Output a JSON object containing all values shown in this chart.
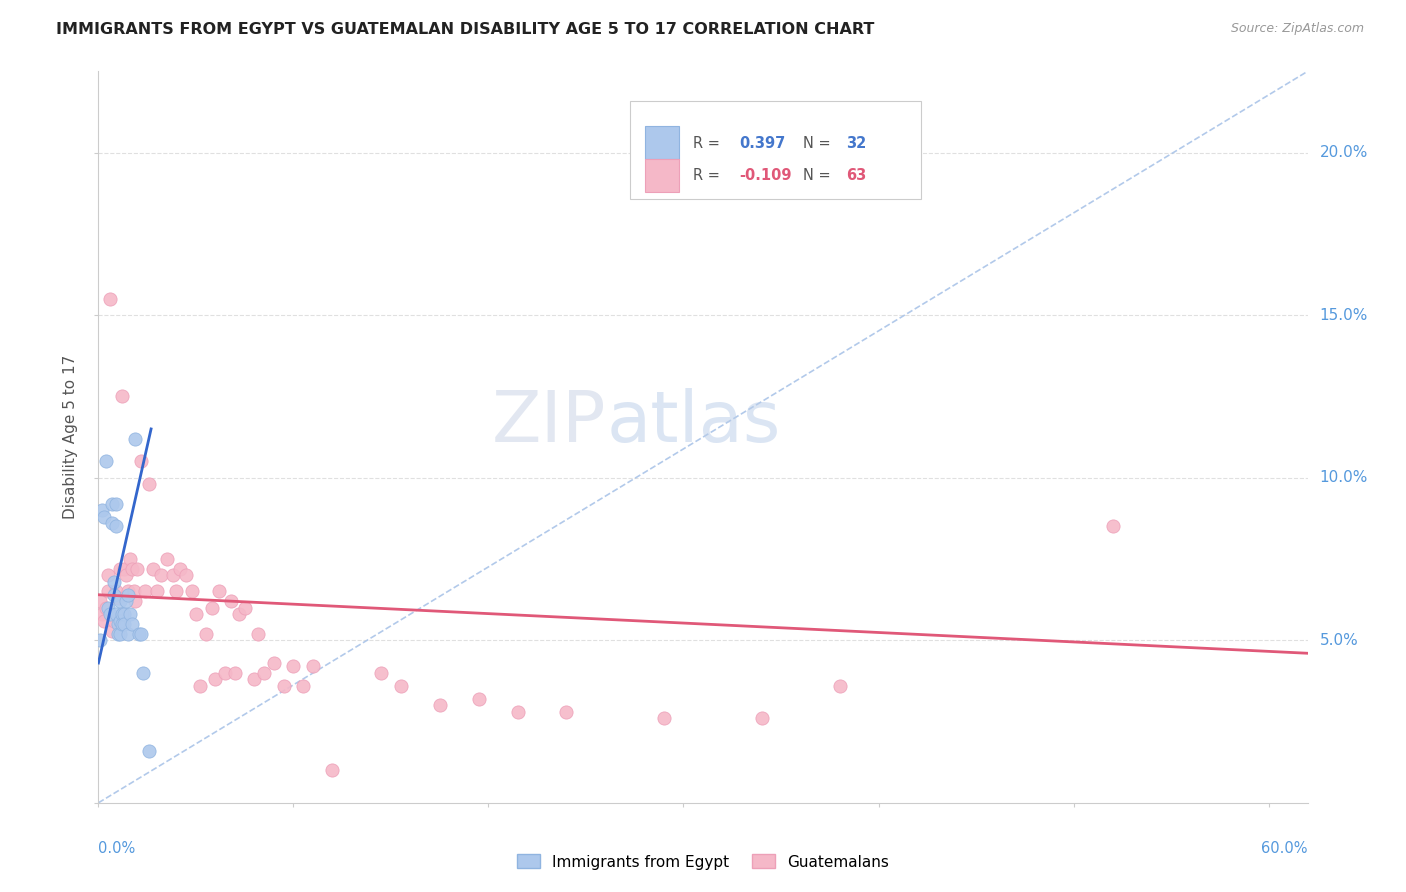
{
  "title": "IMMIGRANTS FROM EGYPT VS GUATEMALAN DISABILITY AGE 5 TO 17 CORRELATION CHART",
  "source": "Source: ZipAtlas.com",
  "ylabel": "Disability Age 5 to 17",
  "right_yticks": [
    "20.0%",
    "15.0%",
    "10.0%",
    "5.0%"
  ],
  "right_ytick_vals": [
    0.2,
    0.15,
    0.1,
    0.05
  ],
  "legend": {
    "egypt_r": "0.397",
    "egypt_n": "32",
    "guatemala_r": "-0.109",
    "guatemala_n": "63"
  },
  "egypt_color": "#adc8ec",
  "egypt_color_edge": "#90b4e0",
  "guatemala_color": "#f5b8c8",
  "guatemala_color_edge": "#eda0b8",
  "trend_egypt_color": "#3366cc",
  "trend_guatemala_color": "#e05878",
  "diagonal_color": "#aac4e8",
  "watermark_zip": "ZIP",
  "watermark_atlas": "atlas",
  "egypt_points": [
    [
      0.001,
      0.05
    ],
    [
      0.002,
      0.09
    ],
    [
      0.003,
      0.088
    ],
    [
      0.004,
      0.105
    ],
    [
      0.005,
      0.06
    ],
    [
      0.006,
      0.058
    ],
    [
      0.007,
      0.092
    ],
    [
      0.007,
      0.086
    ],
    [
      0.008,
      0.068
    ],
    [
      0.008,
      0.064
    ],
    [
      0.009,
      0.092
    ],
    [
      0.009,
      0.085
    ],
    [
      0.009,
      0.058
    ],
    [
      0.01,
      0.055
    ],
    [
      0.01,
      0.052
    ],
    [
      0.011,
      0.062
    ],
    [
      0.011,
      0.056
    ],
    [
      0.011,
      0.052
    ],
    [
      0.012,
      0.058
    ],
    [
      0.012,
      0.055
    ],
    [
      0.013,
      0.058
    ],
    [
      0.013,
      0.055
    ],
    [
      0.014,
      0.062
    ],
    [
      0.015,
      0.064
    ],
    [
      0.015,
      0.052
    ],
    [
      0.016,
      0.058
    ],
    [
      0.017,
      0.055
    ],
    [
      0.019,
      0.112
    ],
    [
      0.021,
      0.052
    ],
    [
      0.022,
      0.052
    ],
    [
      0.023,
      0.04
    ],
    [
      0.026,
      0.016
    ]
  ],
  "guatemala_points": [
    [
      0.001,
      0.062
    ],
    [
      0.002,
      0.058
    ],
    [
      0.003,
      0.056
    ],
    [
      0.004,
      0.06
    ],
    [
      0.005,
      0.07
    ],
    [
      0.005,
      0.065
    ],
    [
      0.006,
      0.155
    ],
    [
      0.007,
      0.053
    ],
    [
      0.008,
      0.056
    ],
    [
      0.009,
      0.065
    ],
    [
      0.01,
      0.063
    ],
    [
      0.011,
      0.072
    ],
    [
      0.012,
      0.125
    ],
    [
      0.013,
      0.072
    ],
    [
      0.014,
      0.07
    ],
    [
      0.015,
      0.065
    ],
    [
      0.016,
      0.075
    ],
    [
      0.017,
      0.072
    ],
    [
      0.018,
      0.065
    ],
    [
      0.019,
      0.062
    ],
    [
      0.02,
      0.072
    ],
    [
      0.022,
      0.105
    ],
    [
      0.024,
      0.065
    ],
    [
      0.026,
      0.098
    ],
    [
      0.028,
      0.072
    ],
    [
      0.03,
      0.065
    ],
    [
      0.032,
      0.07
    ],
    [
      0.035,
      0.075
    ],
    [
      0.038,
      0.07
    ],
    [
      0.04,
      0.065
    ],
    [
      0.042,
      0.072
    ],
    [
      0.045,
      0.07
    ],
    [
      0.048,
      0.065
    ],
    [
      0.05,
      0.058
    ],
    [
      0.052,
      0.036
    ],
    [
      0.055,
      0.052
    ],
    [
      0.058,
      0.06
    ],
    [
      0.06,
      0.038
    ],
    [
      0.062,
      0.065
    ],
    [
      0.065,
      0.04
    ],
    [
      0.068,
      0.062
    ],
    [
      0.07,
      0.04
    ],
    [
      0.072,
      0.058
    ],
    [
      0.075,
      0.06
    ],
    [
      0.08,
      0.038
    ],
    [
      0.082,
      0.052
    ],
    [
      0.085,
      0.04
    ],
    [
      0.09,
      0.043
    ],
    [
      0.095,
      0.036
    ],
    [
      0.1,
      0.042
    ],
    [
      0.105,
      0.036
    ],
    [
      0.11,
      0.042
    ],
    [
      0.12,
      0.01
    ],
    [
      0.145,
      0.04
    ],
    [
      0.155,
      0.036
    ],
    [
      0.175,
      0.03
    ],
    [
      0.195,
      0.032
    ],
    [
      0.215,
      0.028
    ],
    [
      0.24,
      0.028
    ],
    [
      0.29,
      0.026
    ],
    [
      0.34,
      0.026
    ],
    [
      0.38,
      0.036
    ],
    [
      0.52,
      0.085
    ]
  ],
  "xlim": [
    0.0,
    0.62
  ],
  "ylim": [
    0.0,
    0.225
  ],
  "egypt_trend_x": [
    0.0,
    0.027
  ],
  "egypt_trend_y": [
    0.043,
    0.115
  ],
  "guatemala_trend_x": [
    0.0,
    0.62
  ],
  "guatemala_trend_y": [
    0.064,
    0.046
  ]
}
